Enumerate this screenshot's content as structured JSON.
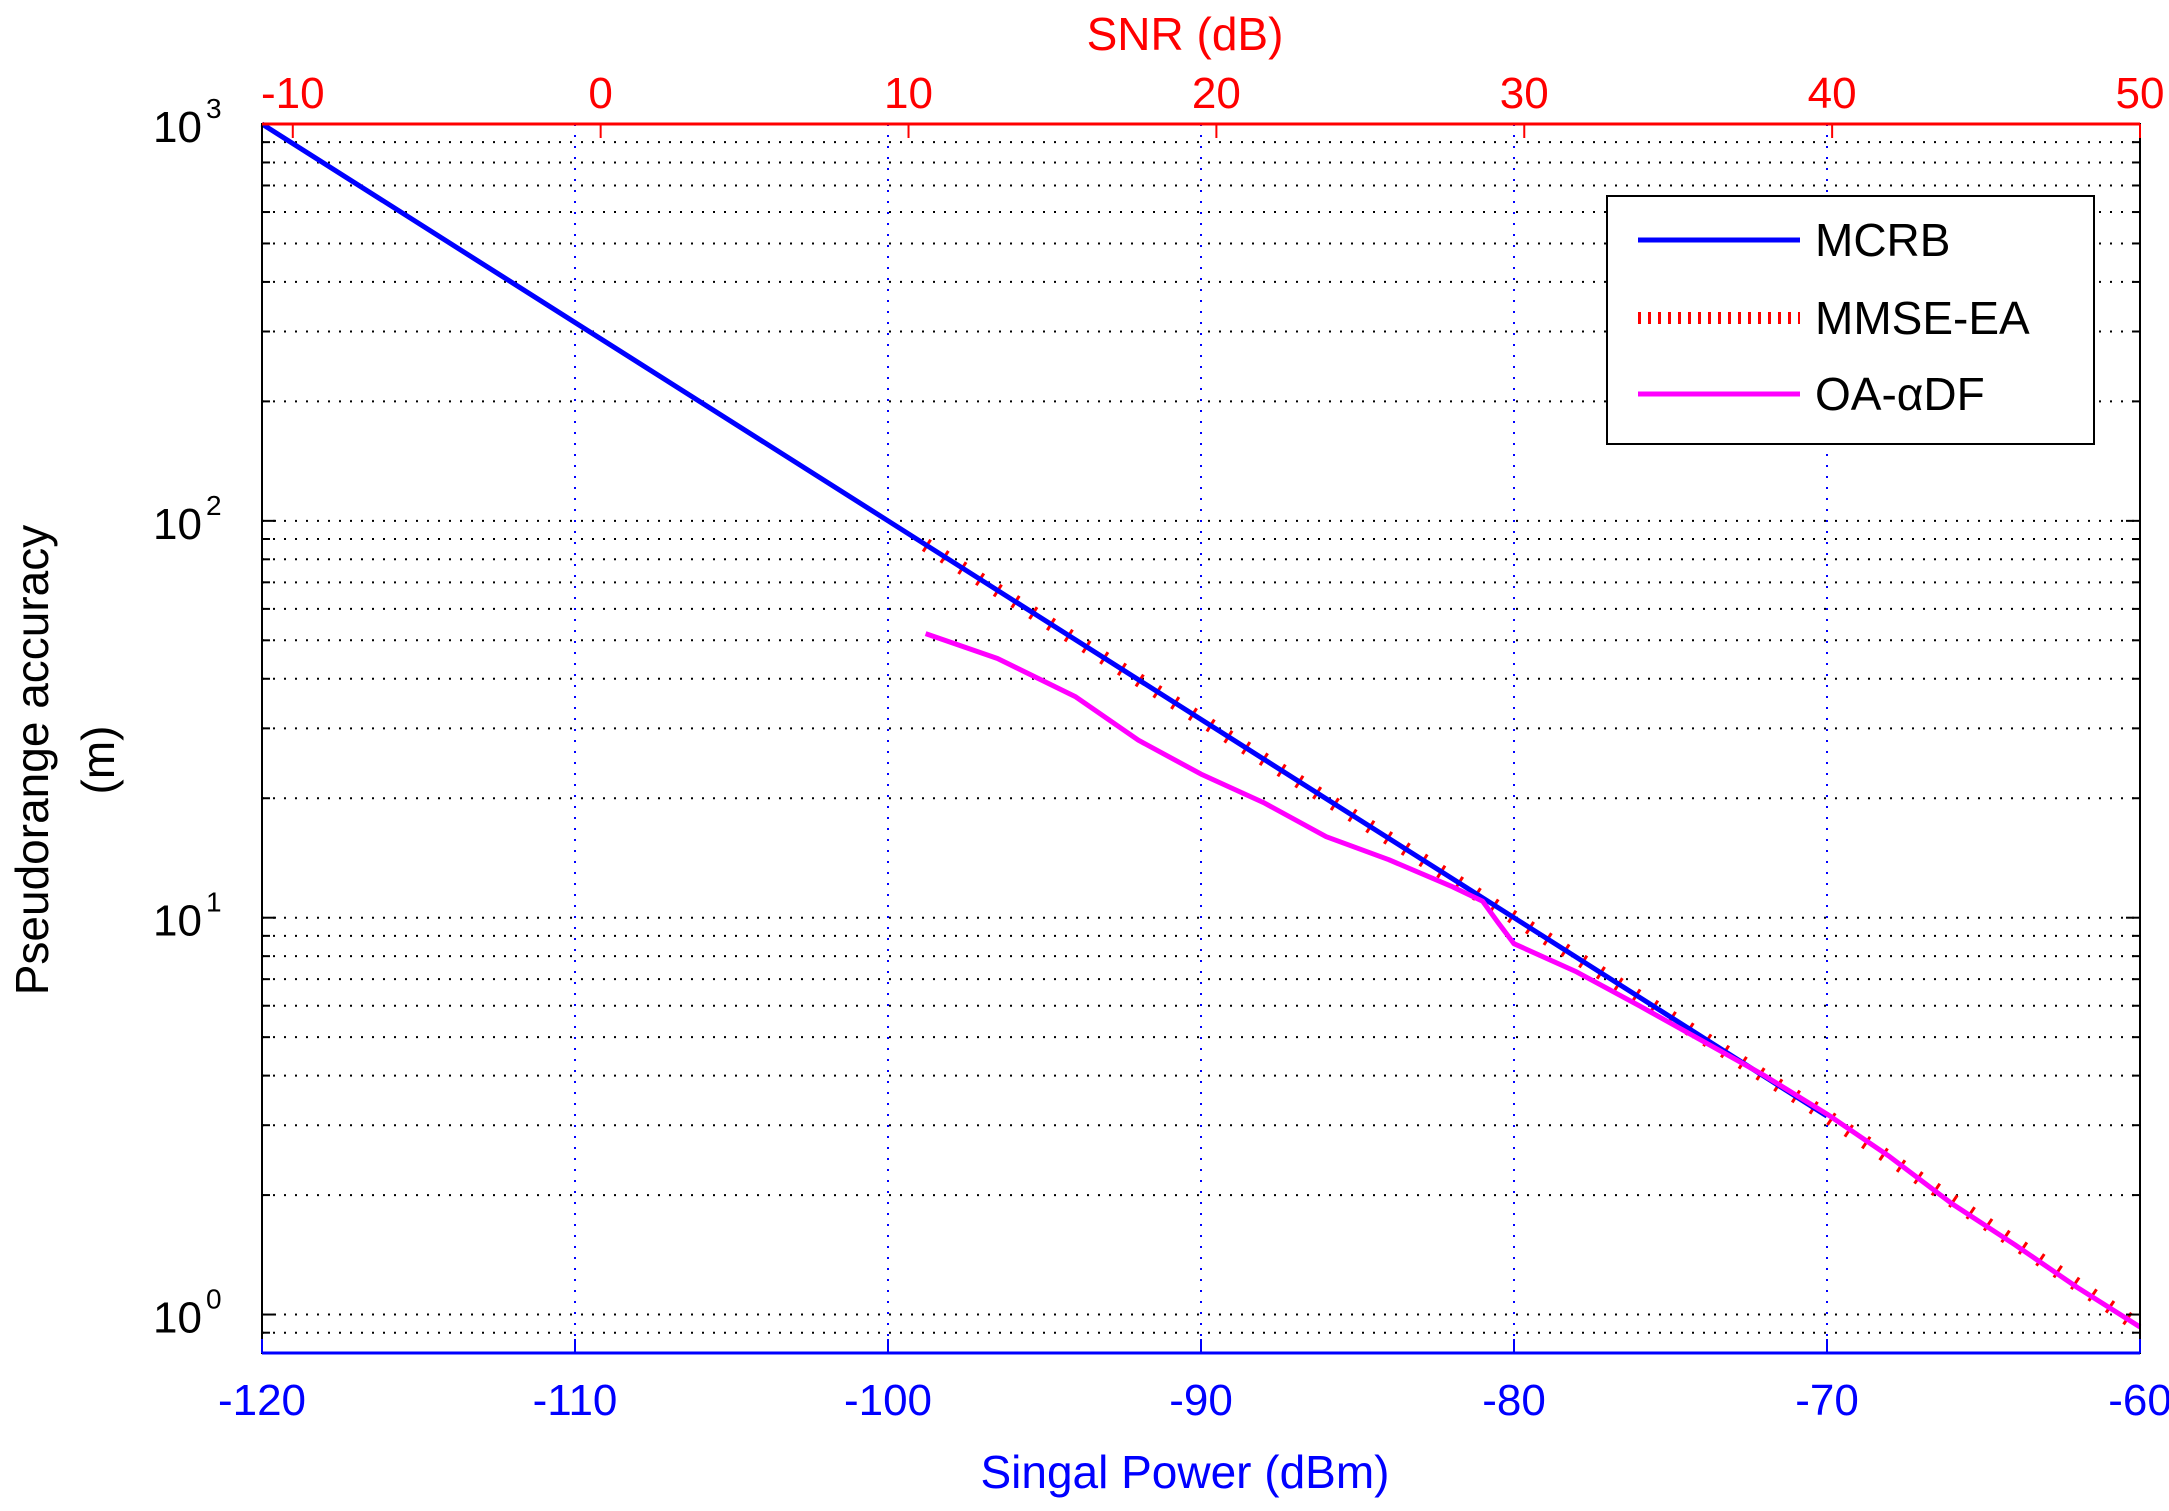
{
  "chart_data": {
    "type": "line",
    "xlabel": "Singal Power (dBm)",
    "x2label": "SNR (dB)",
    "ylabel": "Pseudorange accuracy (m)",
    "ylabel_lines": [
      "Pseudorange accuracy",
      "(m)"
    ],
    "xlim": [
      -120,
      -60
    ],
    "x2lim": [
      -11,
      50
    ],
    "ylim": [
      0.8,
      1000
    ],
    "yscale": "log",
    "grid": true,
    "legend_position": "top-right",
    "x_ticks": [
      "-120",
      "-110",
      "-100",
      "-90",
      "-80",
      "-70",
      "-60"
    ],
    "x2_ticks": [
      "-10",
      "0",
      "10",
      "20",
      "30",
      "40",
      "50"
    ],
    "y_ticks": [
      {
        "base": "10",
        "exp": "0",
        "value": 1
      },
      {
        "base": "10",
        "exp": "1",
        "value": 10
      },
      {
        "base": "10",
        "exp": "2",
        "value": 100
      },
      {
        "base": "10",
        "exp": "3",
        "value": 1000
      }
    ],
    "series": [
      {
        "name": "MCRB",
        "color": "#0000ff",
        "style": "solid",
        "x": [
          -120,
          -110,
          -100,
          -90,
          -80,
          -70
        ],
        "y": [
          1000,
          316,
          100,
          31.6,
          10,
          3.16
        ]
      },
      {
        "name": "MMSE-EA",
        "color": "#ff0000",
        "style": "dotted",
        "x": [
          -98.8,
          -90,
          -80,
          -70,
          -60
        ],
        "y": [
          87,
          31.6,
          10,
          3.16,
          0.93
        ]
      },
      {
        "name": "OA-αDF",
        "color": "#ff00ff",
        "style": "solid",
        "x": [
          -98.8,
          -96.5,
          -94,
          -92,
          -90,
          -88,
          -86,
          -84,
          -82,
          -81,
          -80.5,
          -80,
          -78,
          -76,
          -74,
          -72,
          -70,
          -68,
          -66,
          -64,
          -62,
          -60
        ],
        "y": [
          52,
          45,
          36,
          28,
          23,
          19.5,
          16,
          14,
          12,
          11,
          9.7,
          8.6,
          7.3,
          6,
          4.9,
          4.0,
          3.2,
          2.5,
          1.9,
          1.5,
          1.17,
          0.93
        ]
      }
    ]
  }
}
